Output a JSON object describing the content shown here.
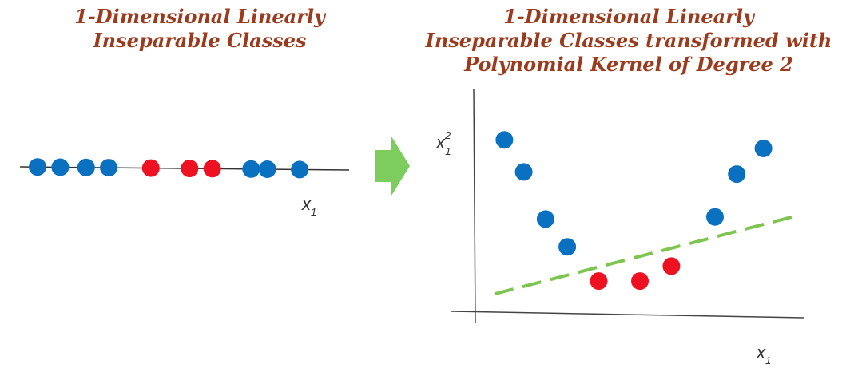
{
  "left_panel": {
    "title_lines": [
      "1-Dimensional Linearly",
      "Inseparable Classes"
    ],
    "x_label": "x",
    "x_label_sub": "1",
    "points": [
      {
        "x": -4.5,
        "class": "blue"
      },
      {
        "x": -3.8,
        "class": "blue"
      },
      {
        "x": -3.0,
        "class": "blue"
      },
      {
        "x": -2.3,
        "class": "blue"
      },
      {
        "x": -1.0,
        "class": "red"
      },
      {
        "x": 0.2,
        "class": "red"
      },
      {
        "x": 0.9,
        "class": "red"
      },
      {
        "x": 2.1,
        "class": "blue"
      },
      {
        "x": 2.6,
        "class": "blue"
      },
      {
        "x": 3.6,
        "class": "blue"
      }
    ]
  },
  "right_panel": {
    "title_lines": [
      "1-Dimensional Linearly",
      "Inseparable Classes transformed with",
      "Polynomial Kernel of Degree 2"
    ],
    "x_label": "x",
    "x_label_sub": "1",
    "y_label": "x",
    "y_label_sup": "2",
    "y_label_sub": "1",
    "points": [
      {
        "x": 1.2,
        "y": 8.2,
        "class": "blue"
      },
      {
        "x": 2.0,
        "y": 6.7,
        "class": "blue"
      },
      {
        "x": 2.9,
        "y": 4.5,
        "class": "blue"
      },
      {
        "x": 3.8,
        "y": 3.2,
        "class": "blue"
      },
      {
        "x": 5.1,
        "y": 1.6,
        "class": "red"
      },
      {
        "x": 6.8,
        "y": 1.6,
        "class": "red"
      },
      {
        "x": 8.1,
        "y": 2.3,
        "class": "red"
      },
      {
        "x": 9.9,
        "y": 4.6,
        "class": "blue"
      },
      {
        "x": 10.8,
        "y": 6.6,
        "class": "blue"
      },
      {
        "x": 11.9,
        "y": 7.8,
        "class": "blue"
      }
    ],
    "separator": {
      "x1": 0.8,
      "y1": 1.0,
      "x2": 13.1,
      "y2": 4.6
    }
  },
  "colors": {
    "blue": "#0a70c0",
    "red": "#ee1122",
    "title": "#9b3a1c",
    "arrow": "#7ccc5e",
    "separator": "#7dc54e",
    "axis": "#444444"
  },
  "arrow_icon": "right-arrow-icon"
}
